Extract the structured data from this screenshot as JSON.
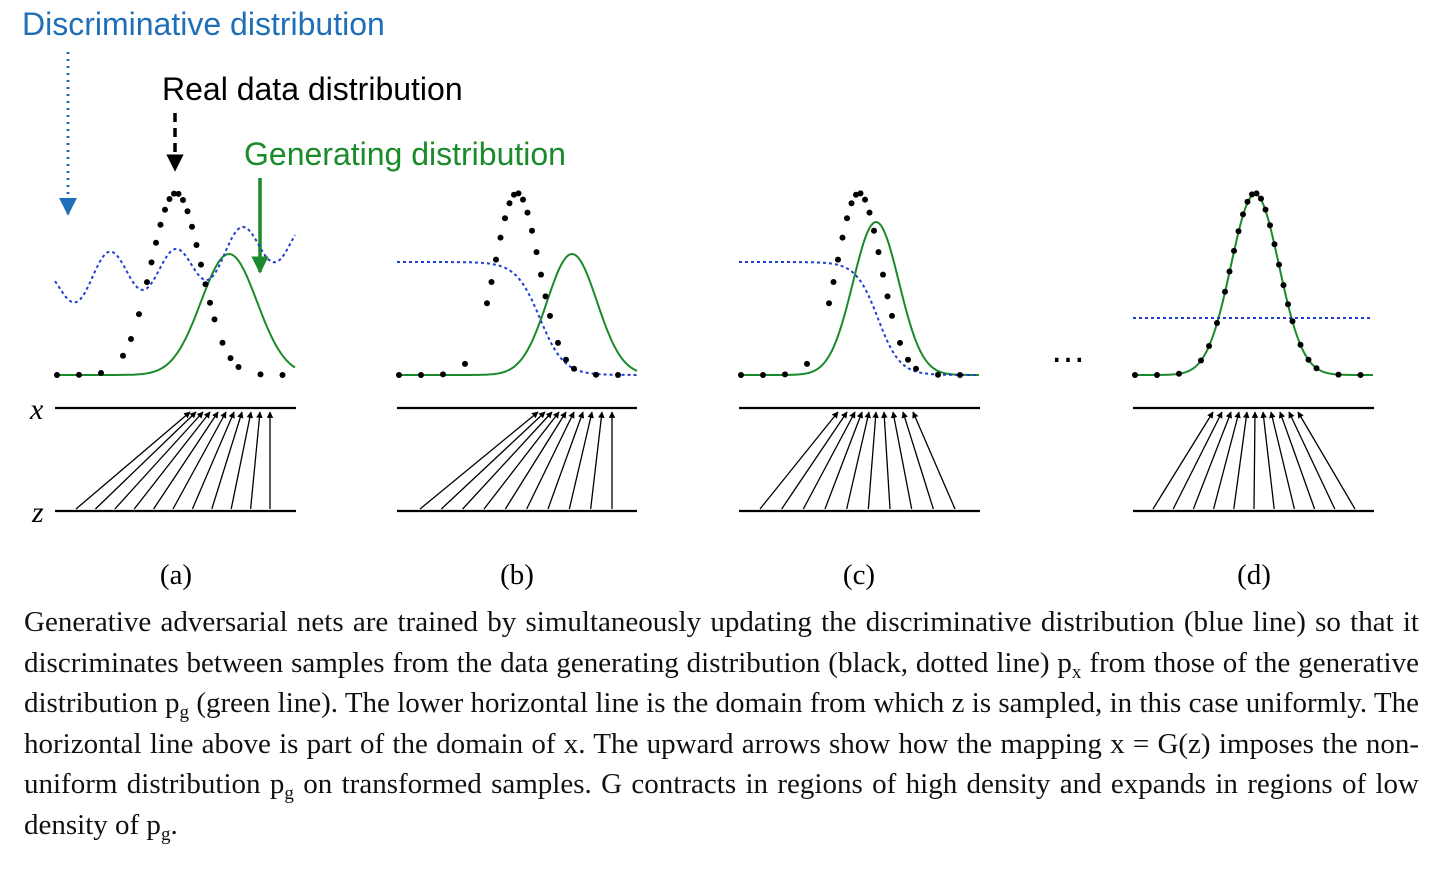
{
  "callouts": {
    "discriminative": "Discriminative distribution",
    "real": "Real data distribution",
    "generating": "Generating distribution"
  },
  "axes": {
    "x": "x",
    "z": "z"
  },
  "panels": [
    {
      "label": "(a)"
    },
    {
      "label": "(b)"
    },
    {
      "label": "(c)"
    },
    {
      "label": "(d)"
    }
  ],
  "ellipsis": "…",
  "colors": {
    "discriminative": "#1f3fd0",
    "real": "#000000",
    "generating": "#1a8a2a",
    "callout_blue": "#1f6fb8",
    "callout_green": "#1a8a2a"
  },
  "caption": {
    "s1": "Generative adversarial nets are trained by simultaneously updating the discriminative distribution (blue line) so that it discriminates between samples from the data generating distribution (black, dotted line) p",
    "s1_sub": "x",
    "s2": " from those of the generative distribution p",
    "s2_sub": "g",
    "s3": " (green line). The lower horizontal line is the domain from which z is sampled, in this case uniformly. The horizontal line above is part of the domain of x. The upward arrows show how the mapping x = G(z) imposes the non-uniform distribution p",
    "s3_sub": "g",
    "s4": " on transformed samples. G contracts in regions of high density and expands in regions of low density of p",
    "s4_sub": "g",
    "s5": "."
  }
}
